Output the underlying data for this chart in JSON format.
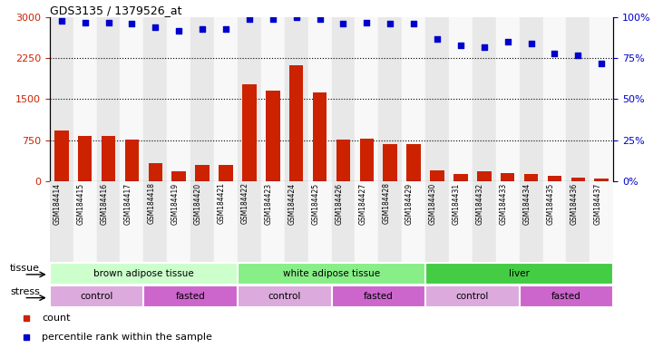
{
  "title": "GDS3135 / 1379526_at",
  "samples": [
    "GSM184414",
    "GSM184415",
    "GSM184416",
    "GSM184417",
    "GSM184418",
    "GSM184419",
    "GSM184420",
    "GSM184421",
    "GSM184422",
    "GSM184423",
    "GSM184424",
    "GSM184425",
    "GSM184426",
    "GSM184427",
    "GSM184428",
    "GSM184429",
    "GSM184430",
    "GSM184431",
    "GSM184432",
    "GSM184433",
    "GSM184434",
    "GSM184435",
    "GSM184436",
    "GSM184437"
  ],
  "counts": [
    920,
    820,
    830,
    760,
    330,
    180,
    290,
    300,
    1780,
    1650,
    2120,
    1620,
    760,
    780,
    680,
    680,
    200,
    130,
    180,
    150,
    120,
    90,
    60,
    50
  ],
  "percentiles": [
    98,
    97,
    97,
    96,
    94,
    92,
    93,
    93,
    99,
    99,
    100,
    99,
    96,
    97,
    96,
    96,
    87,
    83,
    82,
    85,
    84,
    78,
    77,
    72
  ],
  "ylim_left": [
    0,
    3000
  ],
  "ylim_right": [
    0,
    100
  ],
  "yticks_left": [
    0,
    750,
    1500,
    2250,
    3000
  ],
  "yticks_right": [
    0,
    25,
    50,
    75,
    100
  ],
  "bar_color": "#cc2200",
  "dot_color": "#0000cc",
  "tissue_groups": [
    {
      "label": "brown adipose tissue",
      "start": 0,
      "end": 8,
      "color": "#ccffcc"
    },
    {
      "label": "white adipose tissue",
      "start": 8,
      "end": 16,
      "color": "#88ee88"
    },
    {
      "label": "liver",
      "start": 16,
      "end": 24,
      "color": "#44cc44"
    }
  ],
  "stress_groups": [
    {
      "label": "control",
      "start": 0,
      "end": 4,
      "color": "#ddaadd"
    },
    {
      "label": "fasted",
      "start": 4,
      "end": 8,
      "color": "#cc66cc"
    },
    {
      "label": "control",
      "start": 8,
      "end": 12,
      "color": "#ddaadd"
    },
    {
      "label": "fasted",
      "start": 12,
      "end": 16,
      "color": "#cc66cc"
    },
    {
      "label": "control",
      "start": 16,
      "end": 20,
      "color": "#ddaadd"
    },
    {
      "label": "fasted",
      "start": 20,
      "end": 24,
      "color": "#cc66cc"
    }
  ],
  "legend_items": [
    {
      "label": "count",
      "color": "#cc2200"
    },
    {
      "label": "percentile rank within the sample",
      "color": "#0000cc"
    }
  ],
  "col_shading_even": "#e8e8e8",
  "col_shading_odd": "#f8f8f8"
}
